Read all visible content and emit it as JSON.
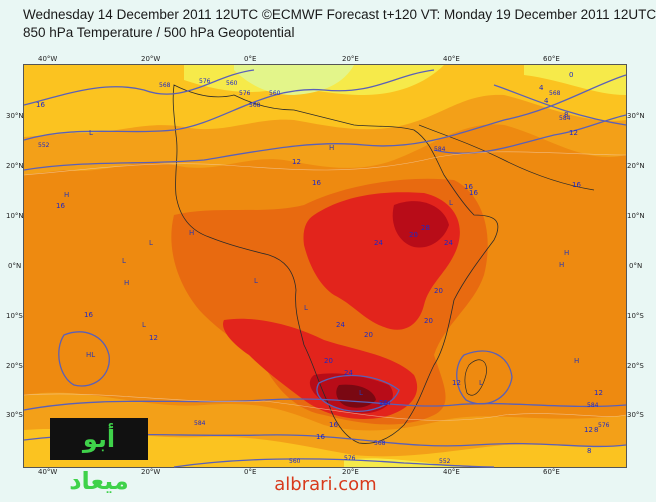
{
  "header": {
    "line1": "Wednesday 14 December 2011 12UTC ©ECMWF Forecast t+120 VT: Monday 19 December 2011 12UTC",
    "line2": "850 hPa Temperature / 500 hPa Geopotential"
  },
  "axes": {
    "top_lon": [
      "40°W",
      "20°W",
      "0°E",
      "20°E",
      "40°E",
      "60°E"
    ],
    "bottom_lon": [
      "40°W",
      "20°W",
      "0°E",
      "20°E",
      "40°E",
      "60°E"
    ],
    "left_lat": [
      "30°N",
      "20°N",
      "10°N",
      "0°N",
      "10°S",
      "20°S",
      "30°S"
    ],
    "right_lat": [
      "30°N",
      "20°N",
      "10°N",
      "0°N",
      "10°S",
      "20°S",
      "30°S"
    ]
  },
  "contour_labels": [
    "16",
    "12",
    "16",
    "16",
    "12",
    "16",
    "20",
    "24",
    "20",
    "24",
    "28",
    "24",
    "20",
    "16",
    "16",
    "8",
    "12",
    "20",
    "16",
    "12",
    "16",
    "20",
    "24",
    "20",
    "16",
    "12",
    "8",
    "4",
    "0",
    "4",
    "8",
    "12"
  ],
  "geopotential_labels": [
    "552",
    "568",
    "576",
    "584",
    "584",
    "576",
    "568",
    "560",
    "552",
    "584",
    "576",
    "568",
    "560",
    "584",
    "576",
    "568",
    "560",
    "584"
  ],
  "pressure_marks": [
    "L",
    "L",
    "L",
    "L",
    "L",
    "L",
    "L",
    "H",
    "H",
    "H",
    "H",
    "H",
    "H",
    "H",
    "HL",
    "L",
    "L"
  ],
  "logo_text": "أبو ميعاد",
  "footer": "albrari.com",
  "colors": {
    "background": "#e9f7f4",
    "temp_0": "#e3f58a",
    "temp_4": "#f6ea4a",
    "temp_8": "#fbc320",
    "temp_12": "#f3a018",
    "temp_16": "#ee8a10",
    "temp_20": "#e86a10",
    "temp_24": "#e2241c",
    "temp_28": "#b80c18",
    "contour": "#5a60b8",
    "label_text": "#1c28c8",
    "logo_bg": "#111111",
    "logo_text": "#3fd24a",
    "footer_text": "#d83a1c"
  }
}
